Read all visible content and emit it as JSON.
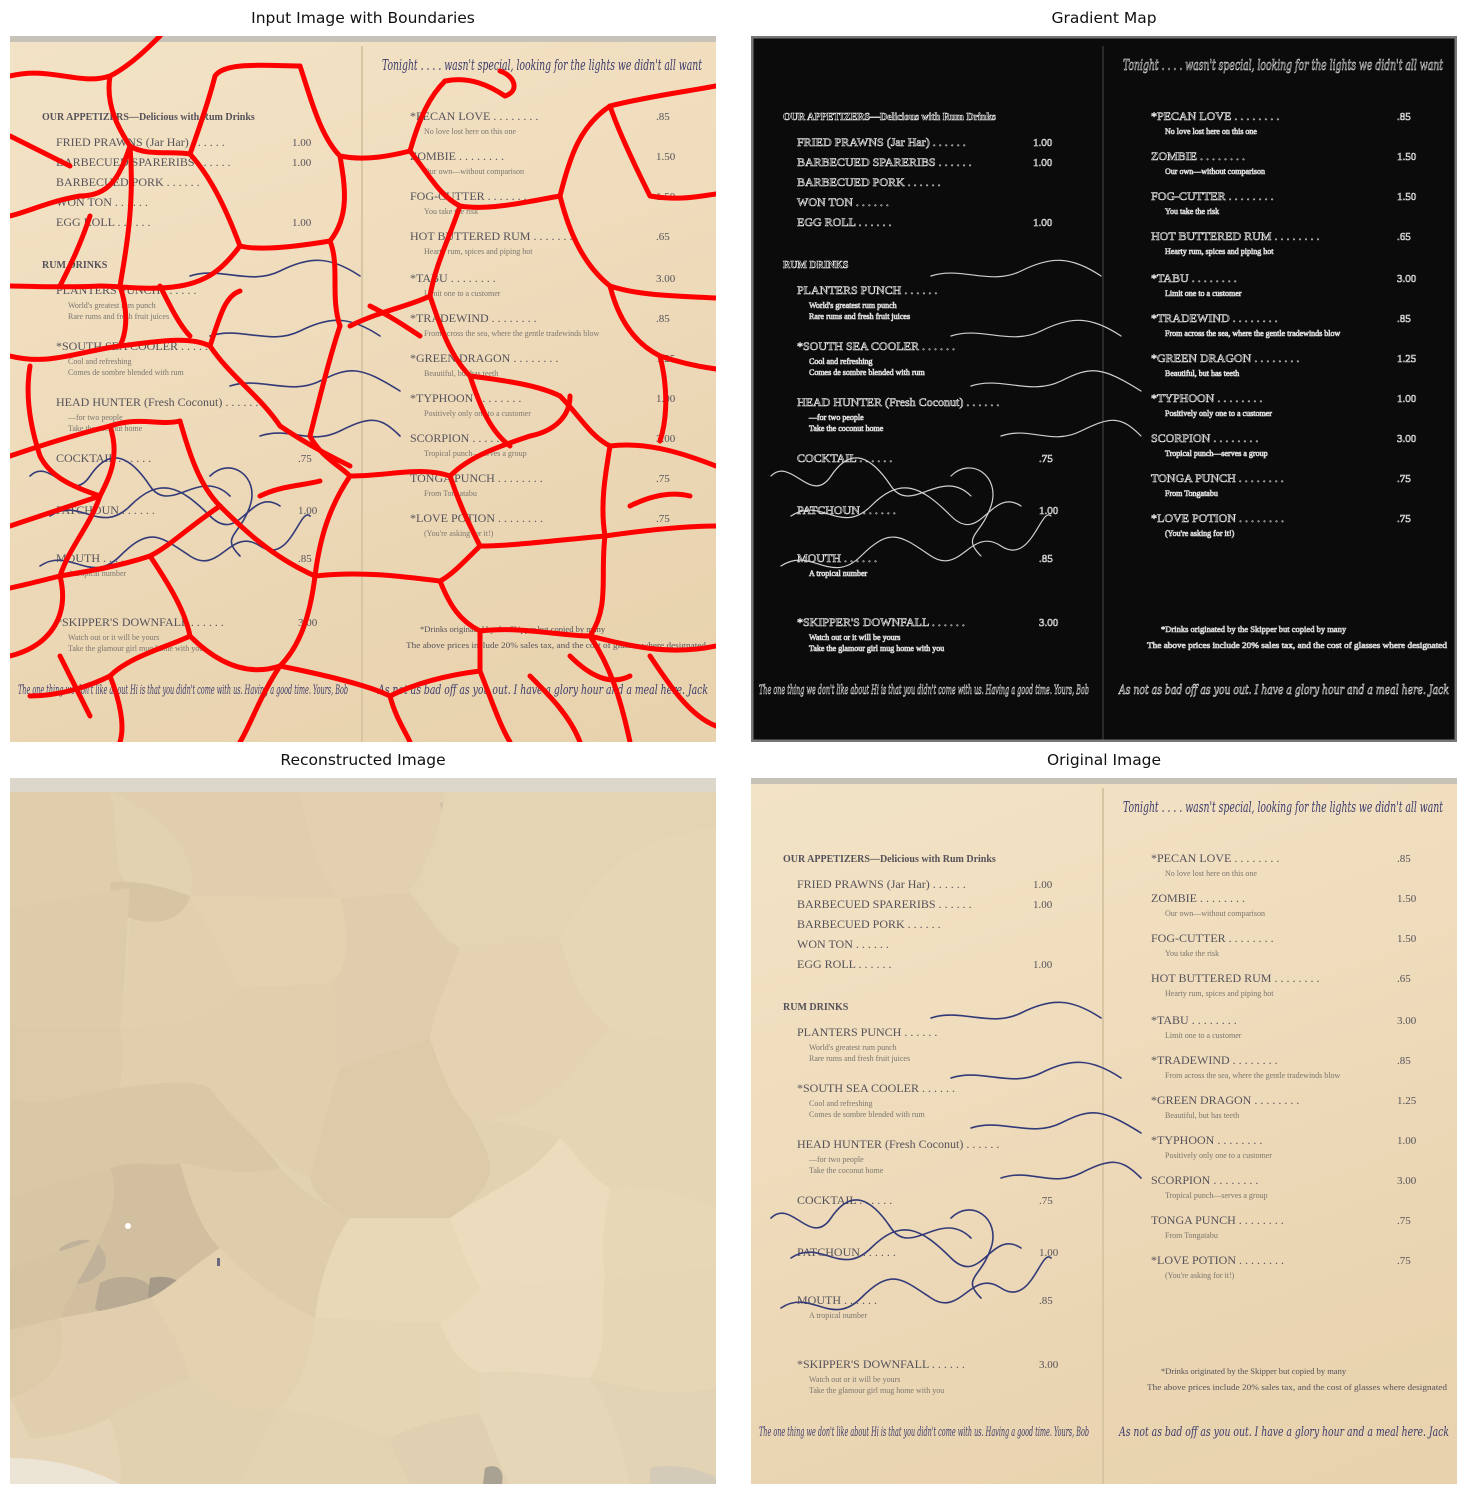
{
  "panels": [
    {
      "title": "Input Image with Boundaries"
    },
    {
      "title": "Gradient Map"
    },
    {
      "title": "Reconstructed Image"
    },
    {
      "title": "Original Image"
    }
  ],
  "colors": {
    "boundary": "#ff0000",
    "paper": "#efdcbc",
    "ink": "#3b3b6b",
    "gradient_bg": "#0b0b0b"
  },
  "menu": {
    "left": {
      "appetizers_header": "OUR APPETIZERS—Delicious with Rum Drinks",
      "appetizers": [
        {
          "name": "FRIED PRAWNS (Jar Har)",
          "price": "1.00"
        },
        {
          "name": "BARBECUED SPARERIBS",
          "price": "1.00"
        },
        {
          "name": "BARBECUED PORK",
          "price": ""
        },
        {
          "name": "WON TON",
          "price": ""
        },
        {
          "name": "EGG ROLL",
          "price": "1.00"
        }
      ],
      "rum_header": "RUM DRINKS",
      "drinks": [
        {
          "name": "PLANTERS PUNCH",
          "sub1": "World's greatest rum punch",
          "sub2": "Rare rums and fresh fruit juices",
          "price": ""
        },
        {
          "name": "*SOUTH SEA COOLER",
          "sub1": "Cool and refreshing",
          "sub2": "Comes de sombre blended with rum",
          "price": ""
        },
        {
          "name": "HEAD HUNTER (Fresh Coconut)",
          "sub1": "—for two people",
          "sub2": "Take the coconut home",
          "price": ""
        },
        {
          "name": "COCKTAIL",
          "sub1": "",
          "sub2": "",
          "price": ".75"
        },
        {
          "name": "PATCHOUN",
          "sub1": "",
          "sub2": "",
          "price": "1.00"
        },
        {
          "name": "MOUTH",
          "sub1": "A tropical number",
          "sub2": "",
          "price": ".85"
        },
        {
          "name": "*SKIPPER'S DOWNFALL",
          "sub1": "Watch out or it will be yours",
          "sub2": "Take the glamour girl mug home with you",
          "price": "3.00"
        }
      ]
    },
    "right": {
      "drinks": [
        {
          "name": "*PECAN LOVE",
          "sub": "No love lost here on this one",
          "price": ".85"
        },
        {
          "name": "ZOMBIE",
          "sub": "Our own—without comparison",
          "price": "1.50"
        },
        {
          "name": "FOG-CUTTER",
          "sub": "You take the risk",
          "price": "1.50"
        },
        {
          "name": "HOT BUTTERED RUM",
          "sub": "Hearty rum, spices and piping hot",
          "price": ".65"
        },
        {
          "name": "*TABU",
          "sub": "Limit one to a customer",
          "price": "3.00"
        },
        {
          "name": "*TRADEWIND",
          "sub": "From across the sea, where the gentle tradewinds blow",
          "price": ".85"
        },
        {
          "name": "*GREEN DRAGON",
          "sub": "Beautiful, but has teeth",
          "price": "1.25"
        },
        {
          "name": "*TYPHOON",
          "sub": "Positively only one to a customer",
          "price": "1.00"
        },
        {
          "name": "SCORPION",
          "sub": "Tropical punch—serves a group",
          "price": "3.00"
        },
        {
          "name": "TONGA PUNCH",
          "sub": "From Tongatabu",
          "price": ".75"
        },
        {
          "name": "*LOVE POTION",
          "sub": "(You're asking for it!)",
          "price": ".75"
        }
      ],
      "footnote1": "*Drinks originated by the Skipper but copied by many",
      "footnote2": "The above prices include 20% sales tax, and the cost of glasses where designated"
    },
    "handwriting": {
      "top": "Tonight . . . . wasn't special, looking for the lights we didn't all want",
      "bottom_left": "The one thing we don't like about Hi is that you didn't come with us. Having a good time. Yours, Bob",
      "bottom_right": "As not as bad off as you out. I have a glory hour and a meal here. Jack"
    }
  }
}
